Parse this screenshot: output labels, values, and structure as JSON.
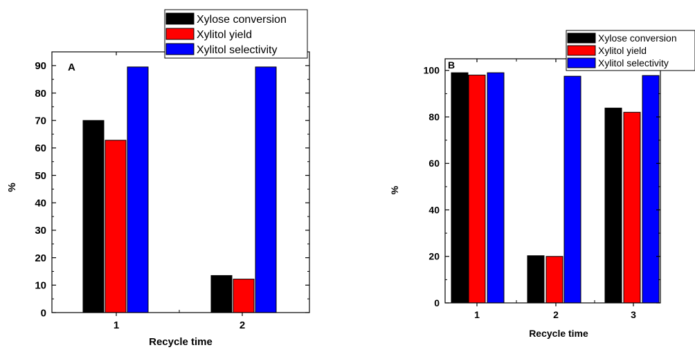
{
  "chart_data": [
    {
      "type": "bar",
      "panel_label": "A",
      "categories": [
        "1",
        "2"
      ],
      "series": [
        {
          "name": "Xylose conversion",
          "color": "#000000",
          "values": [
            70.0,
            13.5
          ]
        },
        {
          "name": "Xylitol yield",
          "color": "#ff0000",
          "values": [
            62.8,
            12.2
          ]
        },
        {
          "name": "Xylitol selectivity",
          "color": "#0000ff",
          "values": [
            89.5,
            89.5
          ]
        }
      ],
      "xlabel": "Recycle time",
      "ylabel": "%",
      "ylim": [
        0,
        100
      ],
      "yticks": [
        "0",
        "10",
        "20",
        "30",
        "40",
        "50",
        "60",
        "70",
        "80",
        "90"
      ],
      "grid": false,
      "legend_position": "top-right, above plot"
    },
    {
      "type": "bar",
      "panel_label": "B",
      "categories": [
        "1",
        "2",
        "3"
      ],
      "series": [
        {
          "name": "Xylose conversion",
          "color": "#000000",
          "values": [
            99.0,
            20.3,
            83.8
          ]
        },
        {
          "name": "Xylitol yield",
          "color": "#ff0000",
          "values": [
            98.0,
            20.0,
            82.0
          ]
        },
        {
          "name": "Xylitol selectivity",
          "color": "#0000ff",
          "values": [
            99.0,
            97.5,
            97.8
          ]
        }
      ],
      "xlabel": "Recycle time",
      "ylabel": "%",
      "ylim": [
        0,
        105
      ],
      "yticks": [
        "0",
        "20",
        "40",
        "60",
        "80",
        "100"
      ],
      "grid": false,
      "legend_position": "top-right, overlapping plot"
    }
  ]
}
